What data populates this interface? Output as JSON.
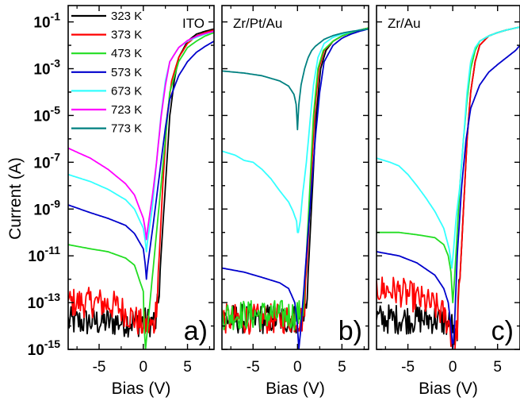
{
  "figure": {
    "ylabel": "Current (A)"
  },
  "colors": {
    "323 K": "#000000",
    "373 K": "#ff0000",
    "473 K": "#22dd22",
    "573 K": "#0000cc",
    "673 K": "#33ffff",
    "723 K": "#ff00ff",
    "773 K": "#008080"
  },
  "chart_data": [
    {
      "type": "line",
      "panel_label": "a)",
      "title": "ITO",
      "xlabel": "Bias (V)",
      "ylabel": "Current (A)",
      "xlim": [
        -8.5,
        8
      ],
      "ylim": [
        1e-15,
        0.5
      ],
      "yscale": "log",
      "xticks": [
        -5,
        0,
        5
      ],
      "yticks": [
        1e-15,
        1e-13,
        1e-11,
        1e-09,
        1e-07,
        1e-05,
        0.001,
        0.1
      ],
      "ytick_labels": [
        "10-15",
        "10-13",
        "10-11",
        "10-9",
        "10-7",
        "10-5",
        "10-3",
        "10-1"
      ],
      "legend": "top-left",
      "series": [
        {
          "name": "323 K",
          "noisy": true,
          "x": [
            -8.5,
            1.4,
            1.7,
            2.0,
            2.5,
            3.0,
            3.5,
            4.0,
            5.0,
            6.0,
            7.0,
            8.0
          ],
          "y": [
            1.5e-14,
            1.5e-14,
            1e-13,
            1e-11,
            1e-08,
            1e-05,
            0.0003,
            0.003,
            0.015,
            0.03,
            0.04,
            0.05
          ]
        },
        {
          "name": "373 K",
          "noisy": true,
          "x": [
            -8.5,
            -5.0,
            -3.0,
            -1.0,
            0.0,
            1.2,
            1.5,
            1.8,
            2.2,
            2.7,
            3.2,
            4.0,
            5.0,
            6.0,
            7.0,
            8.0
          ],
          "y": [
            1e-13,
            1e-13,
            7e-14,
            2e-14,
            1e-14,
            1e-14,
            1e-13,
            1e-11,
            1e-08,
            1e-05,
            0.0003,
            0.003,
            0.012,
            0.025,
            0.035,
            0.045
          ]
        },
        {
          "name": "473 K",
          "x": [
            -8.5,
            -6.0,
            -4.0,
            -2.0,
            -1.0,
            0.0,
            0.1,
            0.25,
            0.5,
            1.0,
            1.5,
            2.0,
            2.5,
            3.0,
            4.0,
            5.0,
            6.0,
            7.0,
            8.0
          ],
          "y": [
            3e-11,
            2e-11,
            1.5e-11,
            8e-12,
            4e-12,
            3e-13,
            1e-14,
            1e-15,
            1e-14,
            1e-12,
            1e-10,
            1e-08,
            1e-06,
            0.0001,
            0.002,
            0.008,
            0.015,
            0.025,
            0.035
          ]
        },
        {
          "name": "573 K",
          "x": [
            -8.5,
            -6.0,
            -4.0,
            -2.0,
            -1.0,
            0.0,
            0.2,
            0.35,
            0.5,
            1.0,
            1.5,
            2.0,
            2.5,
            3.0,
            4.0,
            5.0,
            6.0,
            7.0,
            8.0
          ],
          "y": [
            1.5e-09,
            7e-10,
            4e-10,
            2e-10,
            9e-11,
            2e-11,
            5e-12,
            1e-12,
            4e-12,
            1e-10,
            3e-09,
            1e-07,
            3e-06,
            5e-05,
            0.0005,
            0.002,
            0.005,
            0.009,
            0.015
          ]
        },
        {
          "name": "673 K",
          "x": [
            -8.5,
            -6.0,
            -4.0,
            -2.0,
            -1.0,
            0.0,
            0.2,
            0.35,
            0.5,
            1.0,
            1.5,
            2.0,
            2.5,
            3.0,
            4.0,
            5.0,
            6.0,
            7.0,
            8.0
          ],
          "y": [
            3e-08,
            1.5e-08,
            7e-09,
            2.5e-09,
            1e-09,
            1.5e-10,
            5e-11,
            1.5e-11,
            5e-11,
            1e-09,
            1e-07,
            1e-05,
            0.0003,
            0.002,
            0.008,
            0.015,
            0.022,
            0.03,
            0.04
          ]
        },
        {
          "name": "723 K",
          "x": [
            -8.5,
            -6.0,
            -4.0,
            -2.0,
            -1.0,
            0.0,
            0.2,
            0.35,
            0.5,
            1.0,
            1.5,
            2.0,
            2.5,
            3.0,
            4.0,
            5.0,
            6.0,
            7.0,
            8.0
          ],
          "y": [
            4e-07,
            1.5e-07,
            5e-08,
            1.2e-08,
            4e-09,
            4e-10,
            1.5e-10,
            5e-11,
            1.5e-10,
            3e-09,
            1e-07,
            8e-06,
            0.0002,
            0.002,
            0.008,
            0.016,
            0.024,
            0.032,
            0.04
          ]
        }
      ],
      "annotations": []
    },
    {
      "type": "line",
      "panel_label": "b)",
      "title": "Zr/Pt/Au",
      "xlabel": "Bias (V)",
      "xlim": [
        -8.5,
        8
      ],
      "ylim": [
        1e-15,
        0.5
      ],
      "yscale": "log",
      "xticks": [
        -5,
        0,
        5
      ],
      "series": [
        {
          "name": "323 K",
          "noisy": true,
          "x": [
            -8.5,
            0.7,
            1.0,
            1.3,
            1.7,
            2.1,
            2.6,
            3.2,
            4.0,
            5.0,
            6.0,
            7.0,
            8.0
          ],
          "y": [
            2e-14,
            2e-14,
            1e-13,
            1e-11,
            1e-08,
            1e-05,
            0.001,
            0.006,
            0.015,
            0.025,
            0.035,
            0.045,
            0.055
          ]
        },
        {
          "name": "373 K",
          "noisy": true,
          "x": [
            -8.5,
            0.5,
            0.8,
            1.1,
            1.5,
            1.9,
            2.4,
            3.0,
            4.0,
            5.0,
            6.0,
            7.0,
            8.0
          ],
          "y": [
            2e-14,
            2e-14,
            1e-13,
            1e-11,
            1e-08,
            1e-05,
            0.001,
            0.006,
            0.015,
            0.025,
            0.035,
            0.045,
            0.055
          ]
        },
        {
          "name": "473 K",
          "noisy": true,
          "x": [
            -8.5,
            0.4,
            0.7,
            1.0,
            1.4,
            1.8,
            2.3,
            2.9,
            4.0,
            5.0,
            6.0,
            7.0,
            8.0
          ],
          "y": [
            3e-14,
            3e-14,
            1e-13,
            1e-11,
            1e-08,
            1e-05,
            0.001,
            0.006,
            0.015,
            0.025,
            0.035,
            0.045,
            0.055
          ]
        },
        {
          "name": "573 K",
          "x": [
            -8.5,
            -6.0,
            -4.0,
            -2.0,
            -1.0,
            -0.3,
            0.0,
            0.15,
            0.4,
            0.8,
            1.2,
            1.6,
            2.0,
            2.5,
            3.0,
            4.0,
            5.0,
            6.0,
            7.0,
            8.0
          ],
          "y": [
            3e-12,
            2e-12,
            1.2e-12,
            7e-13,
            4e-13,
            1e-13,
            1e-14,
            1e-15,
            1e-14,
            1e-12,
            1e-10,
            1e-08,
            1e-06,
            0.0001,
            0.002,
            0.01,
            0.02,
            0.03,
            0.04,
            0.05
          ]
        },
        {
          "name": "673 K",
          "noisy": true,
          "x": [
            -8.5,
            -7.0,
            -6.0,
            -5.0,
            -4.0,
            -3.0,
            -2.0,
            -1.0,
            -0.5,
            -0.1,
            0.0,
            0.1,
            0.3,
            0.6,
            1.0,
            1.4,
            1.8,
            2.3,
            3.0,
            4.0,
            5.0,
            6.0,
            7.0,
            8.0
          ],
          "y": [
            3e-07,
            2e-07,
            1.2e-07,
            1e-07,
            5e-08,
            2e-08,
            6e-09,
            2e-09,
            8e-10,
            3e-10,
            1e-10,
            1e-10,
            3e-10,
            5e-09,
            1e-07,
            5e-06,
            0.0002,
            0.003,
            0.012,
            0.022,
            0.03,
            0.038,
            0.045,
            0.05
          ]
        },
        {
          "name": "773 K",
          "x": [
            -8.5,
            -6.0,
            -4.0,
            -2.0,
            -1.0,
            -0.4,
            -0.15,
            0.0,
            0.15,
            0.4,
            0.8,
            1.2,
            1.6,
            2.0,
            3.0,
            4.0,
            5.0,
            6.0,
            7.0,
            8.0
          ],
          "y": [
            0.0008,
            0.00065,
            0.0005,
            0.0003,
            0.00018,
            8e-05,
            3e-05,
            2.5e-06,
            3e-05,
            0.0002,
            0.001,
            0.003,
            0.006,
            0.009,
            0.018,
            0.026,
            0.033,
            0.039,
            0.044,
            0.05
          ]
        }
      ],
      "annotations": []
    },
    {
      "type": "line",
      "panel_label": "c)",
      "title": "Zr/Au",
      "xlabel": "Bias (V)",
      "xlim": [
        -8.5,
        7.5
      ],
      "ylim": [
        1e-15,
        0.5
      ],
      "yscale": "log",
      "xticks": [
        -5,
        0,
        5
      ],
      "series": [
        {
          "name": "323 K",
          "noisy": true,
          "x": [
            -8.5,
            -4.0,
            -3.0,
            -2.0,
            -1.0,
            0.0,
            0.2,
            0.5,
            0.8,
            1.2,
            1.6,
            2.0,
            2.5,
            3.0,
            4.0,
            5.0,
            6.0,
            7.0,
            7.5
          ],
          "y": [
            2e-14,
            2e-14,
            2e-14,
            2e-14,
            1.5e-14,
            1e-14,
            1e-15,
            1e-14,
            1e-12,
            1e-09,
            1e-06,
            0.0001,
            0.002,
            0.01,
            0.025,
            0.035,
            0.045,
            0.055,
            0.06
          ]
        },
        {
          "name": "373 K",
          "noisy": true,
          "x": [
            -8.5,
            -6.0,
            -4.0,
            -2.0,
            -1.0,
            -0.3,
            0.0,
            0.2,
            0.5,
            0.8,
            1.2,
            1.6,
            2.0,
            2.5,
            3.0,
            4.0,
            5.0,
            6.0,
            7.0,
            7.5
          ],
          "y": [
            4e-13,
            3e-13,
            1.5e-13,
            7e-14,
            3e-14,
            1e-14,
            1e-15,
            1e-15,
            1e-14,
            1e-12,
            1e-09,
            1e-06,
            0.0001,
            0.002,
            0.01,
            0.025,
            0.035,
            0.045,
            0.055,
            0.06
          ]
        },
        {
          "name": "473 K",
          "x": [
            -8.5,
            -6.0,
            -4.0,
            -2.0,
            -1.0,
            -0.5,
            -0.2,
            0.0,
            0.2,
            0.5,
            0.8,
            1.2,
            1.6,
            2.0,
            2.5,
            3.0,
            4.0,
            5.0,
            6.0,
            7.0,
            7.5
          ],
          "y": [
            1e-10,
            1e-10,
            8e-11,
            6e-11,
            3e-11,
            1e-11,
            2e-12,
            1e-13,
            1e-12,
            1e-10,
            1e-08,
            1e-06,
            5e-05,
            0.001,
            0.006,
            0.015,
            0.025,
            0.035,
            0.045,
            0.055,
            0.06
          ]
        },
        {
          "name": "573 K",
          "x": [
            -8.5,
            -6.0,
            -4.0,
            -2.0,
            -1.0,
            -0.5,
            -0.2,
            0.0,
            0.2,
            0.5,
            1.0,
            1.5,
            2.0,
            3.0,
            4.0,
            5.0,
            6.0,
            7.0,
            7.5
          ],
          "y": [
            1.5e-11,
            1e-11,
            5e-12,
            1.5e-12,
            4e-13,
            1e-13,
            1e-14,
            1e-15,
            1e-14,
            1e-11,
            1e-08,
            1e-06,
            2e-05,
            0.0002,
            0.0007,
            0.0015,
            0.003,
            0.006,
            0.01
          ]
        },
        {
          "name": "673 K",
          "x": [
            -8.5,
            -7.0,
            -6.0,
            -5.0,
            -4.0,
            -3.0,
            -2.0,
            -1.0,
            -0.4,
            -0.1,
            0.1,
            0.4,
            0.8,
            1.2,
            1.6,
            2.0,
            2.5,
            3.0,
            4.0,
            5.0,
            6.0,
            7.0,
            7.5
          ],
          "y": [
            1.5e-07,
            1e-07,
            7e-08,
            3e-08,
            1e-08,
            3e-09,
            8e-10,
            1.5e-10,
            2e-11,
            3e-12,
            2e-11,
            5e-10,
            1e-08,
            1e-06,
            0.0001,
            0.002,
            0.008,
            0.015,
            0.025,
            0.035,
            0.045,
            0.055,
            0.06
          ]
        }
      ],
      "annotations": []
    }
  ]
}
